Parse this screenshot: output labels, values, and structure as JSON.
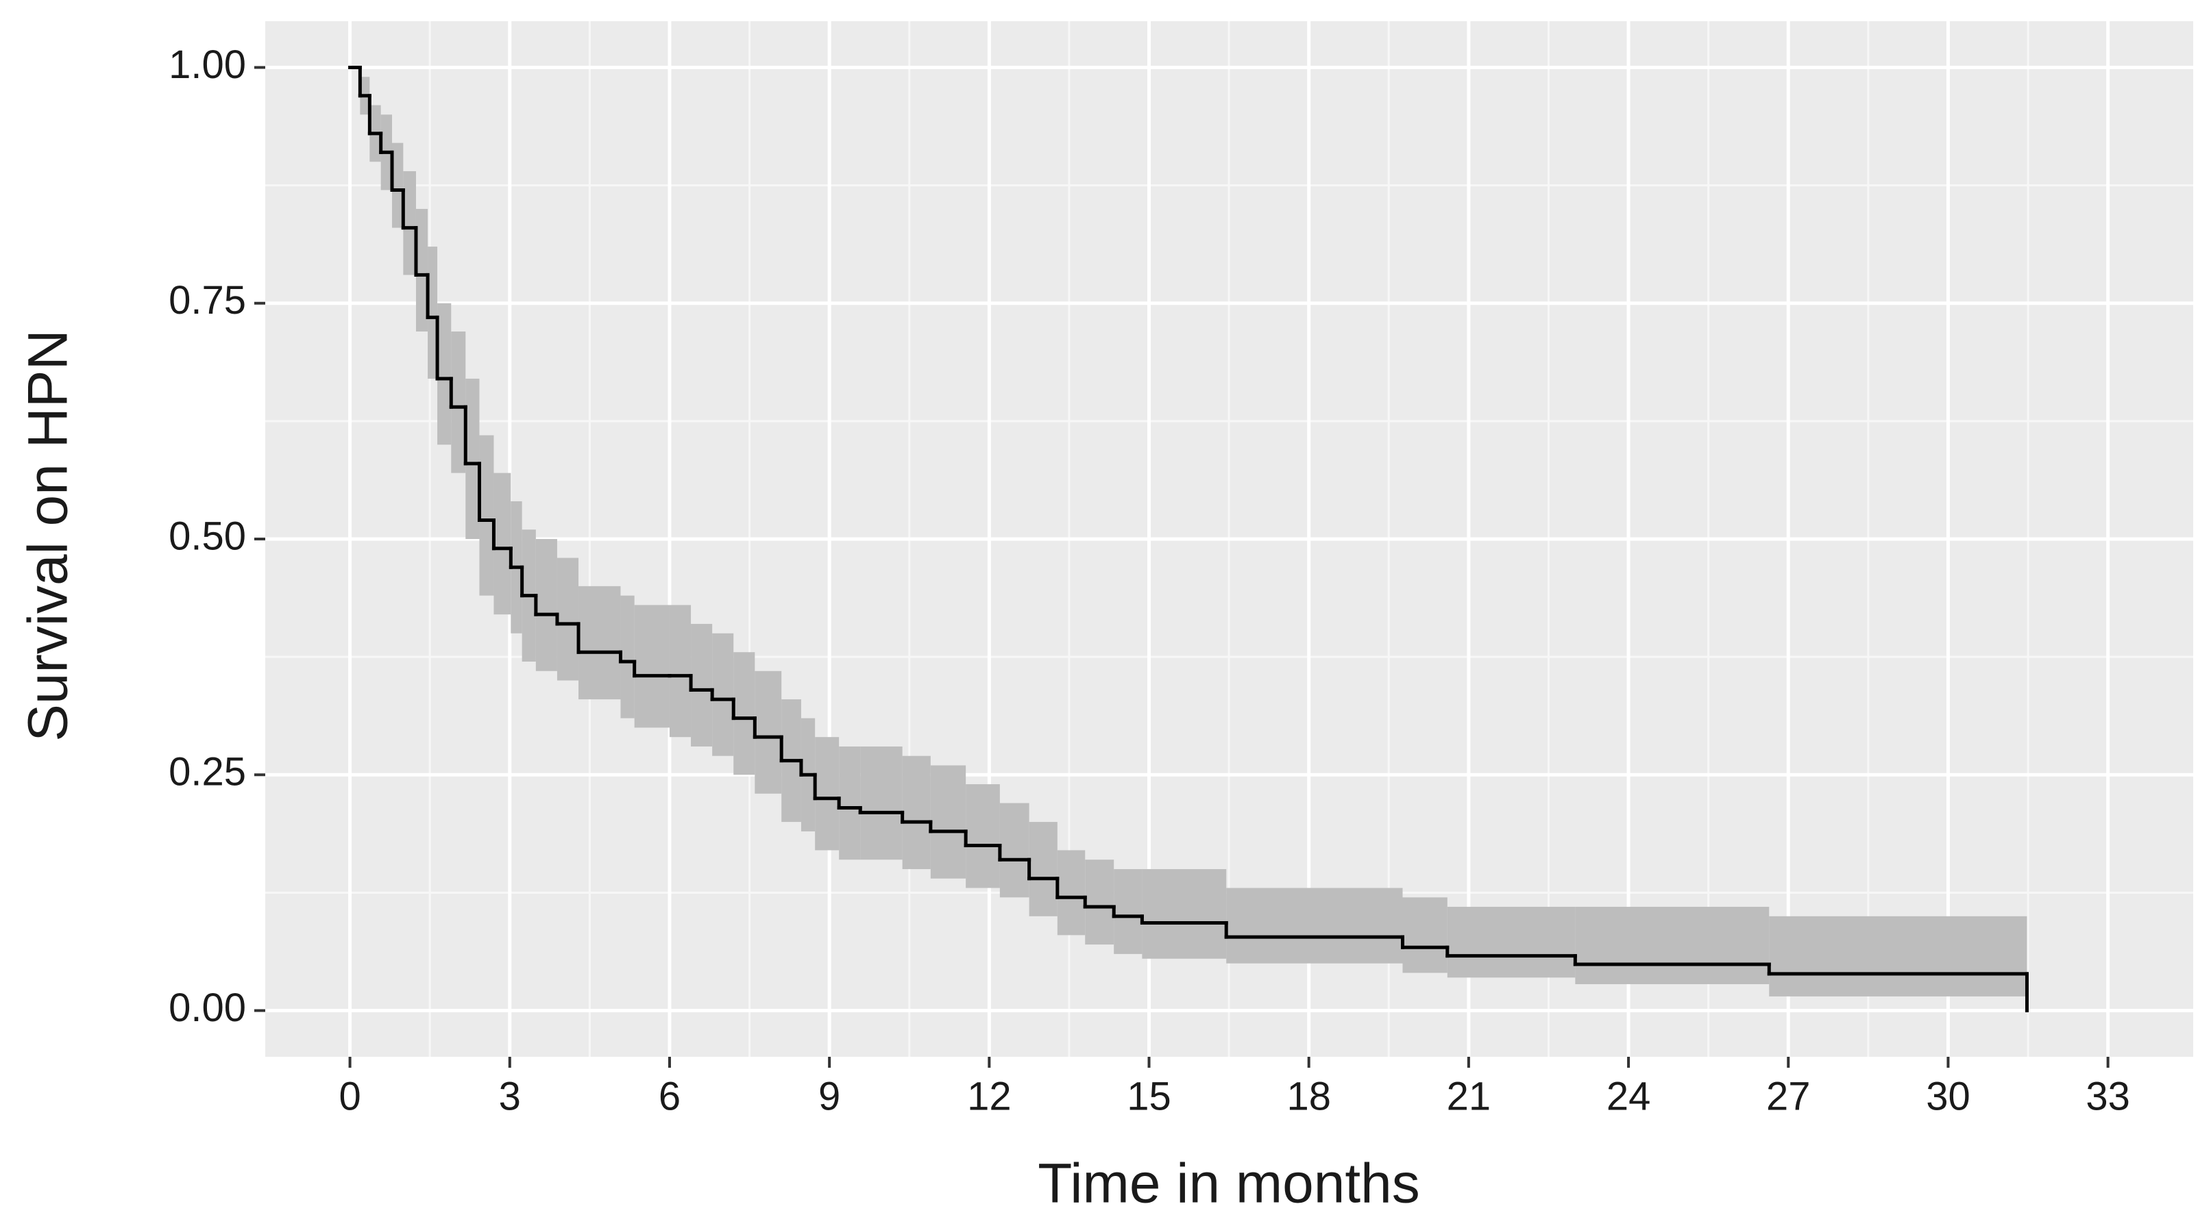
{
  "chart_data": {
    "type": "step",
    "xlabel": "Time in months",
    "ylabel": "Survival on HPN",
    "xlim": [
      -1.59,
      34.6
    ],
    "ylim": [
      -0.049,
      1.049
    ],
    "xticks": [
      0,
      3,
      6,
      9,
      12,
      15,
      18,
      21,
      24,
      27,
      30,
      33
    ],
    "yticks": [
      {
        "value": 0,
        "label": "0.00"
      },
      {
        "value": 0.25,
        "label": "0.25"
      },
      {
        "value": 0.5,
        "label": "0.50"
      },
      {
        "value": 0.75,
        "label": "0.75"
      },
      {
        "value": 1,
        "label": "1.00"
      }
    ],
    "grid": true,
    "color": "#000000",
    "band_color": "#bdbdbd",
    "x": [
      0,
      0.19,
      0.37,
      0.58,
      0.79,
      1.0,
      1.24,
      1.46,
      1.64,
      1.9,
      2.17,
      2.43,
      2.7,
      3.02,
      3.23,
      3.49,
      3.89,
      4.29,
      5.08,
      5.34,
      6.0,
      6.4,
      6.8,
      7.2,
      7.6,
      8.1,
      8.47,
      8.73,
      9.18,
      9.58,
      10.37,
      10.9,
      11.56,
      12.2,
      12.75,
      13.28,
      13.8,
      14.34,
      14.87,
      16.45,
      19.76,
      20.6,
      23.0,
      26.64,
      31.48
    ],
    "values": [
      1.0,
      0.97,
      0.93,
      0.91,
      0.87,
      0.83,
      0.78,
      0.735,
      0.67,
      0.64,
      0.58,
      0.52,
      0.49,
      0.47,
      0.44,
      0.42,
      0.41,
      0.38,
      0.37,
      0.355,
      0.355,
      0.34,
      0.33,
      0.31,
      0.29,
      0.265,
      0.25,
      0.225,
      0.215,
      0.21,
      0.2,
      0.19,
      0.175,
      0.16,
      0.14,
      0.12,
      0.11,
      0.1,
      0.093,
      0.078,
      0.067,
      0.058,
      0.049,
      0.039,
      0.0
    ],
    "upper": [
      1.0,
      0.99,
      0.96,
      0.95,
      0.92,
      0.89,
      0.85,
      0.81,
      0.75,
      0.72,
      0.67,
      0.61,
      0.57,
      0.54,
      0.51,
      0.5,
      0.48,
      0.45,
      0.44,
      0.43,
      0.43,
      0.41,
      0.4,
      0.38,
      0.36,
      0.33,
      0.31,
      0.29,
      0.28,
      0.28,
      0.27,
      0.26,
      0.24,
      0.22,
      0.2,
      0.17,
      0.16,
      0.15,
      0.15,
      0.13,
      0.12,
      0.11,
      0.11,
      0.1,
      0.1
    ],
    "lower": [
      1.0,
      0.95,
      0.9,
      0.87,
      0.83,
      0.78,
      0.72,
      0.67,
      0.6,
      0.57,
      0.5,
      0.44,
      0.42,
      0.4,
      0.37,
      0.36,
      0.35,
      0.33,
      0.31,
      0.3,
      0.29,
      0.28,
      0.27,
      0.25,
      0.23,
      0.2,
      0.19,
      0.17,
      0.16,
      0.16,
      0.15,
      0.14,
      0.13,
      0.12,
      0.1,
      0.08,
      0.07,
      0.06,
      0.055,
      0.05,
      0.04,
      0.035,
      0.028,
      0.015,
      0.015
    ]
  }
}
